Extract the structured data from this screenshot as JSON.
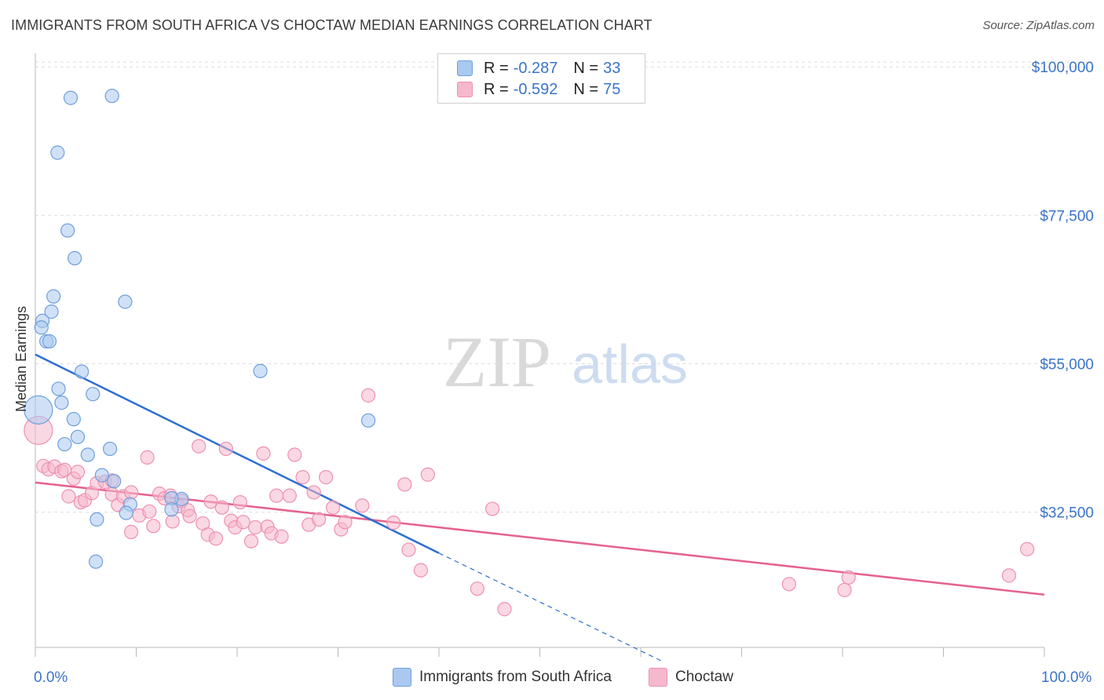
{
  "header": {
    "title": "IMMIGRANTS FROM SOUTH AFRICA VS CHOCTAW MEDIAN EARNINGS CORRELATION CHART",
    "source": "Source: ZipAtlas.com"
  },
  "watermark": {
    "part1": "ZIP",
    "part2": "atlas"
  },
  "legend_top": [
    {
      "r_label": "R = ",
      "r_value": "-0.287",
      "n_label": "N = ",
      "n_value": "33"
    },
    {
      "r_label": "R = ",
      "r_value": "-0.592",
      "n_label": "N = ",
      "n_value": "75"
    }
  ],
  "legend_bottom": [
    {
      "label": "Immigrants from South Africa"
    },
    {
      "label": "Choctaw"
    }
  ],
  "colors": {
    "blue_fill": "#aac8f0",
    "blue_stroke": "#6f9fdc",
    "blue_line": "#2c6fd1",
    "pink_fill": "#f6b8cc",
    "pink_stroke": "#ee90b0",
    "pink_line": "#e5628e",
    "axis_text": "#3a74c8",
    "grid": "#dddddd"
  },
  "chart_data": {
    "type": "scatter",
    "title": "IMMIGRANTS FROM SOUTH AFRICA VS CHOCTAW MEDIAN EARNINGS CORRELATION CHART",
    "xlabel": "",
    "ylabel": "Median Earnings",
    "xlim": [
      0,
      100
    ],
    "ylim": [
      12000,
      103000
    ],
    "x_tick_labels": [
      "0.0%",
      "100.0%"
    ],
    "y_ticks": [
      32500,
      55000,
      77500,
      100000
    ],
    "y_tick_labels": [
      "$32,500",
      "$55,000",
      "$77,500",
      "$100,000"
    ],
    "grid": true,
    "series": [
      {
        "name": "Immigrants from South Africa",
        "color": "#aac8f0",
        "R": -0.287,
        "N": 33,
        "trend": {
          "x": [
            0,
            40
          ],
          "y": [
            56400,
            26300
          ]
        },
        "trend_dashed": {
          "x": [
            40,
            62
          ],
          "y": [
            26300,
            10000
          ]
        },
        "points": [
          {
            "x": 3.5,
            "y": 95300
          },
          {
            "x": 7.6,
            "y": 95600
          },
          {
            "x": 2.2,
            "y": 87000
          },
          {
            "x": 3.2,
            "y": 75200
          },
          {
            "x": 3.9,
            "y": 71000
          },
          {
            "x": 1.8,
            "y": 65200
          },
          {
            "x": 8.9,
            "y": 64400
          },
          {
            "x": 1.6,
            "y": 62900
          },
          {
            "x": 0.7,
            "y": 61500
          },
          {
            "x": 0.6,
            "y": 60500
          },
          {
            "x": 1.1,
            "y": 58400
          },
          {
            "x": 1.4,
            "y": 58400
          },
          {
            "x": 0.3,
            "y": 48000
          },
          {
            "x": 4.6,
            "y": 53800
          },
          {
            "x": 22.3,
            "y": 53900
          },
          {
            "x": 2.3,
            "y": 51200
          },
          {
            "x": 5.7,
            "y": 50400
          },
          {
            "x": 2.6,
            "y": 49100
          },
          {
            "x": 3.8,
            "y": 46600
          },
          {
            "x": 4.2,
            "y": 43900
          },
          {
            "x": 2.9,
            "y": 42800
          },
          {
            "x": 5.2,
            "y": 41200
          },
          {
            "x": 7.4,
            "y": 42100
          },
          {
            "x": 33.0,
            "y": 46400
          },
          {
            "x": 6.6,
            "y": 38100
          },
          {
            "x": 7.8,
            "y": 37200
          },
          {
            "x": 14.5,
            "y": 34500
          },
          {
            "x": 13.5,
            "y": 34600
          },
          {
            "x": 9.4,
            "y": 33700
          },
          {
            "x": 9.0,
            "y": 32400
          },
          {
            "x": 13.5,
            "y": 32900
          },
          {
            "x": 6.1,
            "y": 31400
          },
          {
            "x": 6.0,
            "y": 25000
          }
        ]
      },
      {
        "name": "Choctaw",
        "color": "#f6b8cc",
        "R": -0.592,
        "N": 75,
        "trend": {
          "x": [
            0,
            100
          ],
          "y": [
            37000,
            20000
          ]
        },
        "points": [
          {
            "x": 0.3,
            "y": 44900
          },
          {
            "x": 0.8,
            "y": 39500
          },
          {
            "x": 1.3,
            "y": 39000
          },
          {
            "x": 1.9,
            "y": 39400
          },
          {
            "x": 2.6,
            "y": 38700
          },
          {
            "x": 2.9,
            "y": 38900
          },
          {
            "x": 3.8,
            "y": 37600
          },
          {
            "x": 4.2,
            "y": 38600
          },
          {
            "x": 3.3,
            "y": 34900
          },
          {
            "x": 4.5,
            "y": 34000
          },
          {
            "x": 4.9,
            "y": 34300
          },
          {
            "x": 5.6,
            "y": 35400
          },
          {
            "x": 6.1,
            "y": 36900
          },
          {
            "x": 6.9,
            "y": 37100
          },
          {
            "x": 7.6,
            "y": 37300
          },
          {
            "x": 7.6,
            "y": 35200
          },
          {
            "x": 8.2,
            "y": 33600
          },
          {
            "x": 8.7,
            "y": 34900
          },
          {
            "x": 9.5,
            "y": 35500
          },
          {
            "x": 9.5,
            "y": 29500
          },
          {
            "x": 10.3,
            "y": 32000
          },
          {
            "x": 11.1,
            "y": 40800
          },
          {
            "x": 11.3,
            "y": 32600
          },
          {
            "x": 11.7,
            "y": 30400
          },
          {
            "x": 12.3,
            "y": 35300
          },
          {
            "x": 12.8,
            "y": 34600
          },
          {
            "x": 13.4,
            "y": 35000
          },
          {
            "x": 13.6,
            "y": 31100
          },
          {
            "x": 14.2,
            "y": 33400
          },
          {
            "x": 14.5,
            "y": 34200
          },
          {
            "x": 15.1,
            "y": 32800
          },
          {
            "x": 15.3,
            "y": 31900
          },
          {
            "x": 16.2,
            "y": 42500
          },
          {
            "x": 16.6,
            "y": 30800
          },
          {
            "x": 17.1,
            "y": 29100
          },
          {
            "x": 17.4,
            "y": 34100
          },
          {
            "x": 17.9,
            "y": 28500
          },
          {
            "x": 18.5,
            "y": 33200
          },
          {
            "x": 18.9,
            "y": 42100
          },
          {
            "x": 19.4,
            "y": 31200
          },
          {
            "x": 19.8,
            "y": 30200
          },
          {
            "x": 20.3,
            "y": 34000
          },
          {
            "x": 20.6,
            "y": 31000
          },
          {
            "x": 21.4,
            "y": 28100
          },
          {
            "x": 21.8,
            "y": 30200
          },
          {
            "x": 22.6,
            "y": 41400
          },
          {
            "x": 23.0,
            "y": 30300
          },
          {
            "x": 23.4,
            "y": 29300
          },
          {
            "x": 23.9,
            "y": 35000
          },
          {
            "x": 24.4,
            "y": 28800
          },
          {
            "x": 25.2,
            "y": 35000
          },
          {
            "x": 25.7,
            "y": 41200
          },
          {
            "x": 26.5,
            "y": 37800
          },
          {
            "x": 27.1,
            "y": 30600
          },
          {
            "x": 27.6,
            "y": 35500
          },
          {
            "x": 28.1,
            "y": 31400
          },
          {
            "x": 28.8,
            "y": 37800
          },
          {
            "x": 29.5,
            "y": 33200
          },
          {
            "x": 30.3,
            "y": 29900
          },
          {
            "x": 30.7,
            "y": 31000
          },
          {
            "x": 32.4,
            "y": 33500
          },
          {
            "x": 33.0,
            "y": 50200
          },
          {
            "x": 35.5,
            "y": 30900
          },
          {
            "x": 36.6,
            "y": 36700
          },
          {
            "x": 37.0,
            "y": 26800
          },
          {
            "x": 38.2,
            "y": 23700
          },
          {
            "x": 38.9,
            "y": 38200
          },
          {
            "x": 43.8,
            "y": 20900
          },
          {
            "x": 45.3,
            "y": 33000
          },
          {
            "x": 46.5,
            "y": 17800
          },
          {
            "x": 74.7,
            "y": 21600
          },
          {
            "x": 80.2,
            "y": 20700
          },
          {
            "x": 80.6,
            "y": 22600
          },
          {
            "x": 96.5,
            "y": 22900
          },
          {
            "x": 98.3,
            "y": 26900
          }
        ]
      }
    ]
  }
}
